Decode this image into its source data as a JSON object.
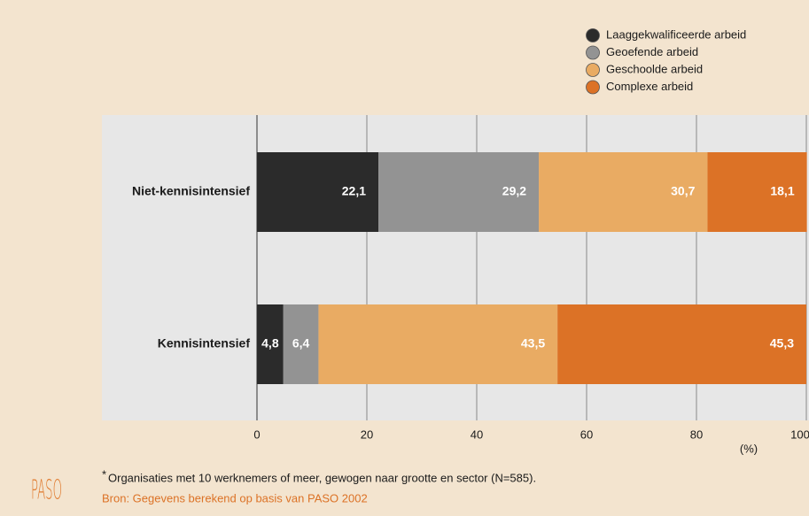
{
  "chart_data": {
    "type": "bar",
    "orientation": "horizontal",
    "stacked": true,
    "categories": [
      "Niet-kennisintensief",
      "Kennisintensief"
    ],
    "series": [
      {
        "name": "Laaggekwalificeerde arbeid",
        "color": "#2b2b2b",
        "values": [
          22.1,
          4.8
        ],
        "value_labels": [
          "22,1",
          "4,8"
        ]
      },
      {
        "name": "Geoefende arbeid",
        "color": "#939393",
        "values": [
          29.2,
          6.4
        ],
        "value_labels": [
          "29,2",
          "6,4"
        ]
      },
      {
        "name": "Geschoolde arbeid",
        "color": "#e9ab63",
        "values": [
          30.7,
          43.5
        ],
        "value_labels": [
          "30,7",
          "43,5"
        ]
      },
      {
        "name": "Complexe arbeid",
        "color": "#dc7226",
        "values": [
          18.1,
          45.3
        ],
        "value_labels": [
          "18,1",
          "45,3"
        ]
      }
    ],
    "xlim": [
      0,
      100
    ],
    "xticks": [
      0,
      20,
      40,
      60,
      80,
      100
    ],
    "x_label": "(%)",
    "grid": true,
    "legend_position": "top-right",
    "footnote_mark": "*",
    "footnote": "Organisaties met 10 werknemers of meer, gewogen naar grootte en sector (N=585).",
    "source": "Bron: Gegevens berekend op basis van PASO 2002",
    "logo": "PASO"
  }
}
